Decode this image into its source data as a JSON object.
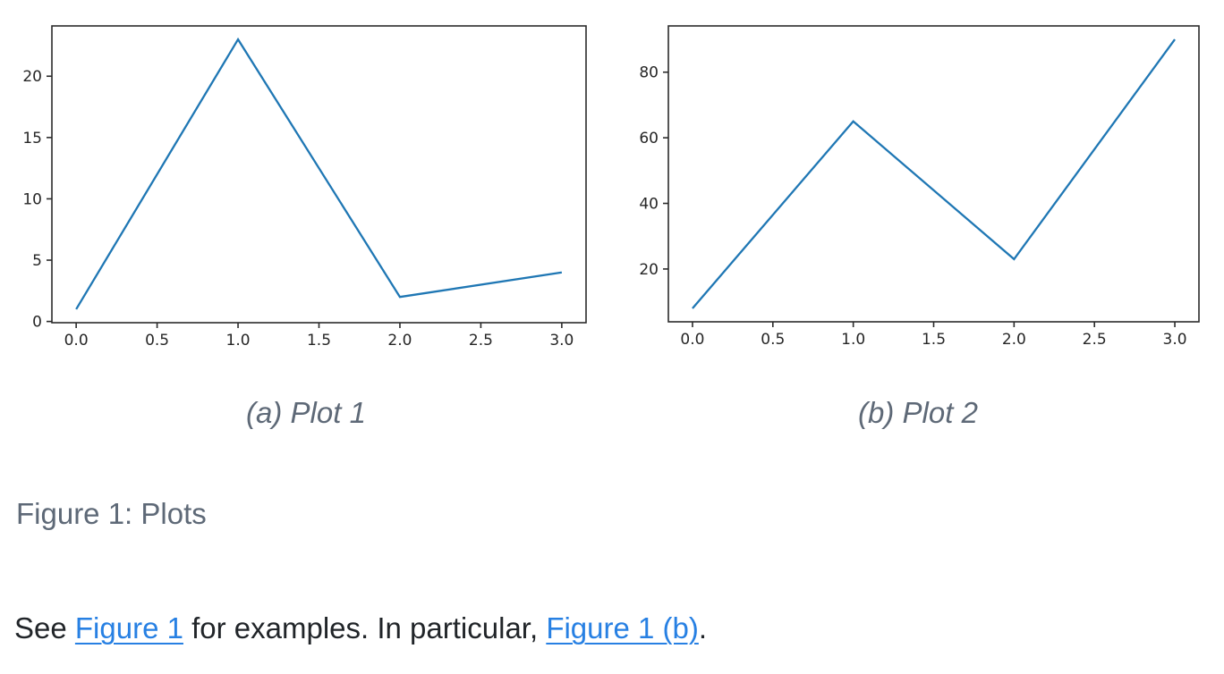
{
  "figure": {
    "caption": "Figure 1: Plots",
    "subfigures": [
      {
        "caption": "(a) Plot 1"
      },
      {
        "caption": "(b) Plot 2"
      }
    ]
  },
  "paragraph": {
    "segments": [
      {
        "type": "text",
        "text": "See "
      },
      {
        "type": "link",
        "text": "Figure 1"
      },
      {
        "type": "text",
        "text": " for examples. In particular, "
      },
      {
        "type": "link",
        "text": "Figure 1 (b)"
      },
      {
        "type": "text",
        "text": "."
      }
    ]
  },
  "chart_data": [
    {
      "type": "line",
      "title": "(a) Plot 1",
      "x": [
        0,
        1,
        2,
        3
      ],
      "y": [
        1,
        23,
        2,
        4
      ],
      "x_tick_labels": [
        "0.0",
        "0.5",
        "1.0",
        "1.5",
        "2.0",
        "2.5",
        "3.0"
      ],
      "y_tick_labels": [
        "0",
        "5",
        "10",
        "15",
        "20"
      ],
      "xlim": [
        -0.15,
        3.15
      ],
      "ylim": [
        -0.1,
        24.1
      ],
      "grid": false,
      "legend": null,
      "xlabel": "",
      "ylabel": "",
      "line_color": "#1f77b4"
    },
    {
      "type": "line",
      "title": "(b) Plot 2",
      "x": [
        0,
        1,
        2,
        3
      ],
      "y": [
        8,
        65,
        23,
        90
      ],
      "x_tick_labels": [
        "0.0",
        "0.5",
        "1.0",
        "1.5",
        "2.0",
        "2.5",
        "3.0"
      ],
      "y_tick_labels": [
        "20",
        "40",
        "60",
        "80"
      ],
      "xlim": [
        -0.15,
        3.15
      ],
      "ylim": [
        3.9,
        94.1
      ],
      "grid": false,
      "legend": null,
      "xlabel": "",
      "ylabel": "",
      "line_color": "#1f77b4"
    }
  ],
  "colors": {
    "plot_line": "#1f77b4",
    "axis": "#2b2b2b",
    "link": "#2780e3",
    "caption_gray": "#5e6977",
    "body_text": "#212529"
  }
}
